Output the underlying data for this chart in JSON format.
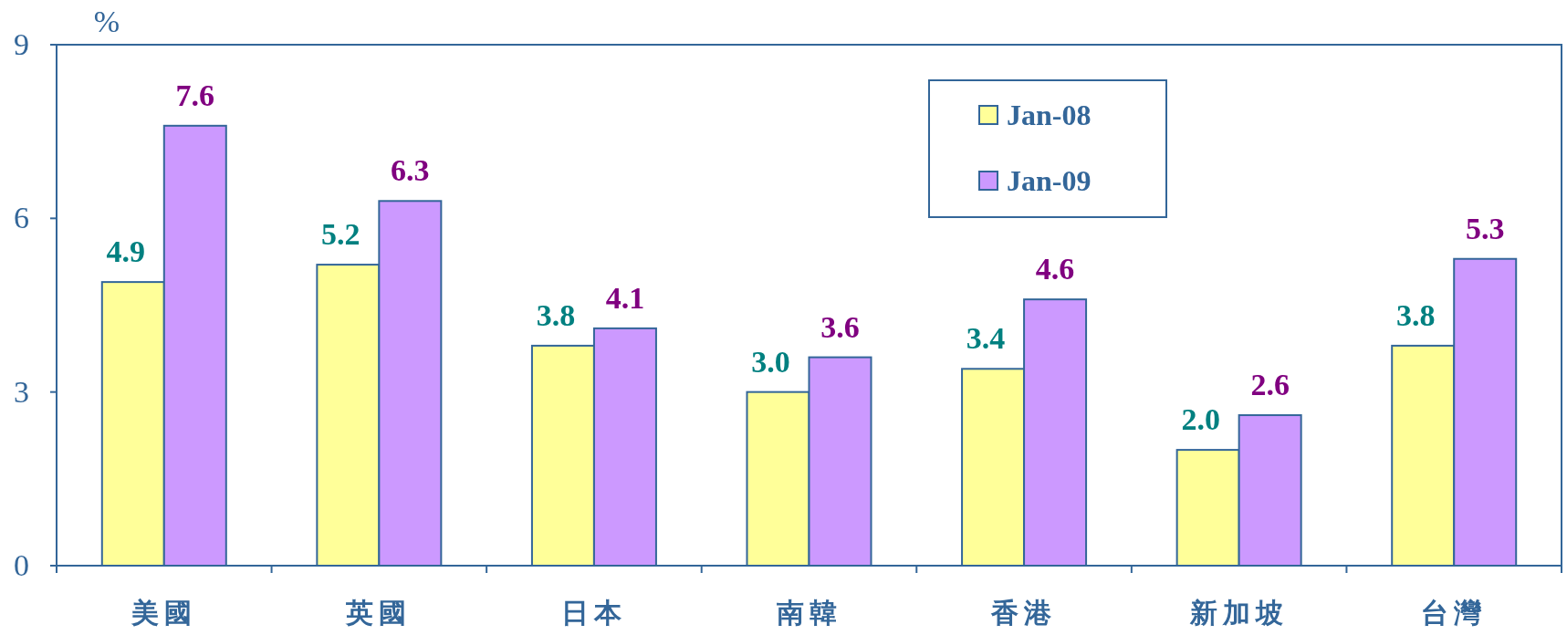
{
  "chart_data": {
    "type": "bar",
    "ylabel": "%",
    "categories": [
      "美國",
      "英國",
      "日本",
      "南韓",
      "香港",
      "新加坡",
      "台灣"
    ],
    "series": [
      {
        "name": "Jan-08",
        "color": "#ffff99",
        "values": [
          4.9,
          5.2,
          3.8,
          3.0,
          3.4,
          2.0,
          3.8
        ],
        "value_labels": [
          "4.9",
          "5.2",
          "3.8",
          "3.0",
          "3.4",
          "2.0",
          "3.8"
        ]
      },
      {
        "name": "Jan-09",
        "color": "#cc99ff",
        "values": [
          7.6,
          6.3,
          4.1,
          3.6,
          4.6,
          2.6,
          5.3
        ],
        "value_labels": [
          "7.6",
          "6.3",
          "4.1",
          "3.6",
          "4.6",
          "2.6",
          "5.3"
        ]
      }
    ],
    "ylim": [
      0,
      9
    ],
    "yticks": [
      0,
      3,
      6,
      9
    ],
    "legend": "top",
    "grid": false
  }
}
